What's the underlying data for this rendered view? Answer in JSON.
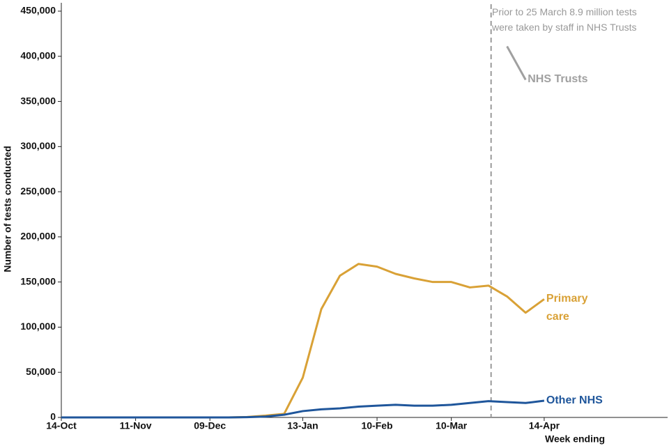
{
  "chart_data": {
    "type": "line",
    "annotation": "Prior to 25 March 8.9 million tests were taken by staff in NHS Trusts",
    "ylabel": "Number of tests conducted",
    "xlabel": "Week ending",
    "categories": [
      "14-Oct",
      null,
      null,
      null,
      "11-Nov",
      null,
      null,
      null,
      "09-Dec",
      null,
      null,
      null,
      null,
      "13-Jan",
      null,
      null,
      null,
      "10-Feb",
      null,
      null,
      null,
      "10-Mar",
      null,
      null,
      null,
      null,
      "14-Apr"
    ],
    "series": [
      {
        "name": "Primary care",
        "color": "#d9a136",
        "values": [
          0,
          0,
          0,
          0,
          0,
          0,
          0,
          0,
          0,
          0,
          500,
          2000,
          4000,
          44000,
          120000,
          157000,
          170000,
          167000,
          159000,
          154000,
          150000,
          150000,
          144000,
          146000,
          134000,
          116000,
          131000
        ]
      },
      {
        "name": "Other NHS",
        "color": "#1f569b",
        "values": [
          0,
          0,
          0,
          0,
          0,
          0,
          0,
          0,
          0,
          0,
          300,
          1000,
          3000,
          7000,
          9000,
          10000,
          12000,
          13000,
          14000,
          13000,
          13000,
          14000,
          16000,
          18000,
          17000,
          16000,
          18500
        ]
      },
      {
        "name": "NHS Trusts",
        "color": "#a0a0a0",
        "values": [
          null,
          null,
          null,
          null,
          null,
          null,
          null,
          null,
          null,
          null,
          null,
          null,
          null,
          null,
          null,
          null,
          null,
          null,
          null,
          null,
          null,
          null,
          null,
          null,
          411000,
          374000,
          null
        ]
      }
    ],
    "ylim": [
      0,
      450000
    ],
    "yticks": [
      0,
      {
        "value": 50000,
        "label": "50,000"
      },
      {
        "value": 100000,
        "label": "100,000"
      },
      {
        "value": 150000,
        "label": "150,000"
      },
      {
        "value": 200000,
        "label": "200,000"
      },
      {
        "value": 250000,
        "label": "250,000"
      },
      {
        "value": 300000,
        "label": "300,000"
      },
      {
        "value": 350000,
        "label": "350,000"
      },
      {
        "value": 400000,
        "label": "400,000"
      },
      {
        "value": 450000,
        "label": "450,000"
      }
    ],
    "grid": false
  }
}
